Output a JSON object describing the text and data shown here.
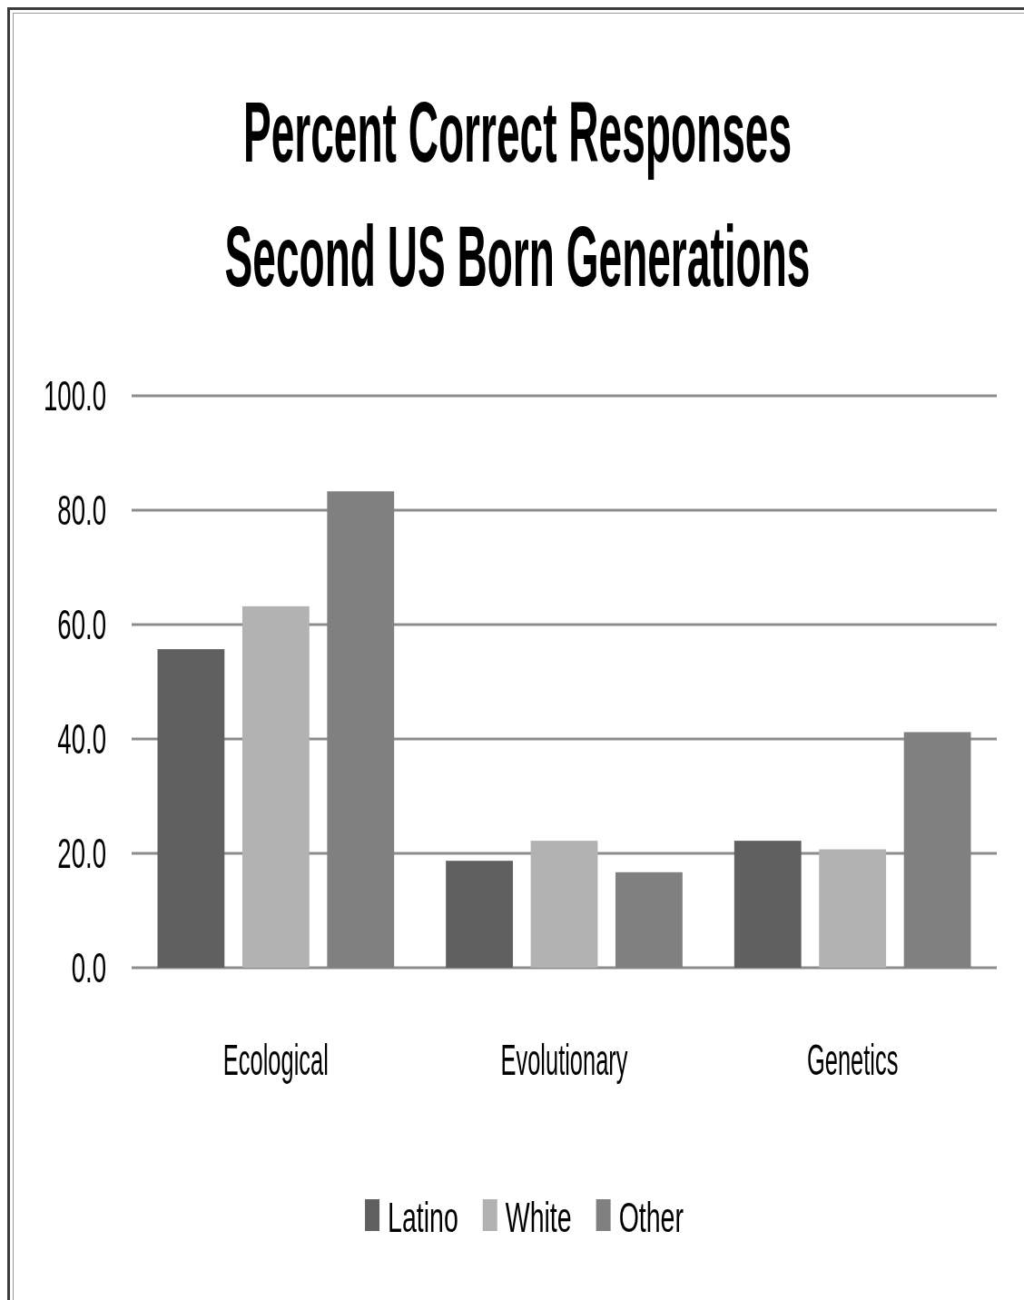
{
  "chart_data": {
    "type": "bar",
    "title": "Percent Correct Responses",
    "subtitle": "Second US Born Generations",
    "categories": [
      "Ecological",
      "Evolutionary",
      "Genetics"
    ],
    "series": [
      {
        "name": "Latino",
        "color": "#606060",
        "values": [
          55.7,
          18.7,
          22.2
        ]
      },
      {
        "name": "White",
        "color": "#b2b2b2",
        "values": [
          63.2,
          22.2,
          20.7
        ]
      },
      {
        "name": "Other",
        "color": "#808080",
        "values": [
          83.3,
          16.7,
          41.2
        ]
      }
    ],
    "ylim": [
      0,
      100
    ],
    "yticks": [
      {
        "value": 0,
        "label": "0.0"
      },
      {
        "value": 20,
        "label": "20.0"
      },
      {
        "value": 40,
        "label": "40.0"
      },
      {
        "value": 60,
        "label": "60.0"
      },
      {
        "value": 80,
        "label": "80.0"
      },
      {
        "value": 100,
        "label": "100.0"
      }
    ],
    "grid": "y",
    "legend": "bottom"
  }
}
